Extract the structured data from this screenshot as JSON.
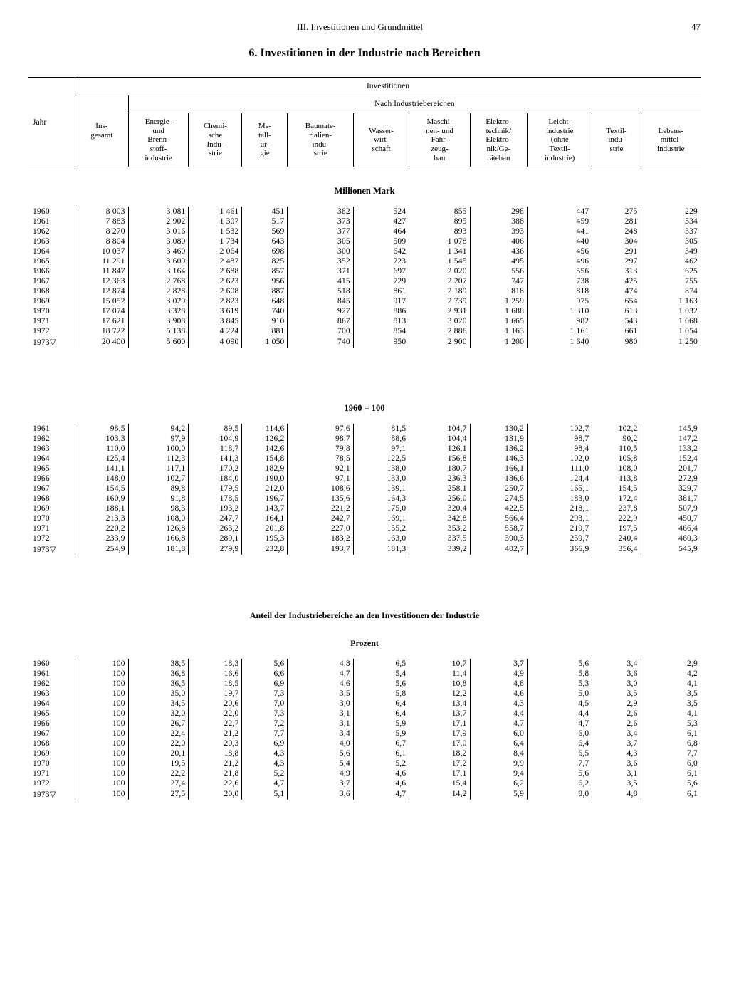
{
  "page": {
    "chapter": "III. Investitionen und Grundmittel",
    "number": "47",
    "title": "6. Investitionen in der Industrie nach Bereichen"
  },
  "headers": {
    "jahr": "Jahr",
    "investitionen": "Investitionen",
    "nach_bereichen": "Nach Industriebereichen",
    "cols": [
      "Ins-\ngesamt",
      "Energie-\nund\nBrenn-\nstoff-\nindustrie",
      "Chemi-\nsche\nIndu-\nstrie",
      "Me-\ntall-\nur-\ngie",
      "Baumate-\nrialien-\nindu-\nstrie",
      "Wasser-\nwirt-\nschaft",
      "Maschi-\nnen- und\nFahr-\nzeug-\nbau",
      "Elektro-\ntechnik/\nElektro-\nnik/Ge-\nrätebau",
      "Leicht-\nindustrie\n(ohne\nTextil-\nindustrie)",
      "Textil-\nindu-\nstrie",
      "Lebens-\nmittel-\nindustrie"
    ]
  },
  "sections": {
    "s1": "Millionen Mark",
    "s2": "1960 = 100",
    "s3a": "Anteil der Industriebereiche an den Investitionen der Industrie",
    "s3b": "Prozent"
  },
  "t1_years": [
    "1960",
    "1961",
    "1962",
    "1963",
    "1964",
    "1965",
    "1966",
    "1967",
    "1968",
    "1969",
    "1970",
    "1971",
    "1972",
    "1973▽"
  ],
  "t1": [
    [
      "8 003",
      "3 081",
      "1 461",
      "451",
      "382",
      "524",
      "855",
      "298",
      "447",
      "275",
      "229"
    ],
    [
      "7 883",
      "2 902",
      "1 307",
      "517",
      "373",
      "427",
      "895",
      "388",
      "459",
      "281",
      "334"
    ],
    [
      "8 270",
      "3 016",
      "1 532",
      "569",
      "377",
      "464",
      "893",
      "393",
      "441",
      "248",
      "337"
    ],
    [
      "8 804",
      "3 080",
      "1 734",
      "643",
      "305",
      "509",
      "1 078",
      "406",
      "440",
      "304",
      "305"
    ],
    [
      "10 037",
      "3 460",
      "2 064",
      "698",
      "300",
      "642",
      "1 341",
      "436",
      "456",
      "291",
      "349"
    ],
    [
      "11 291",
      "3 609",
      "2 487",
      "825",
      "352",
      "723",
      "1 545",
      "495",
      "496",
      "297",
      "462"
    ],
    [
      "11 847",
      "3 164",
      "2 688",
      "857",
      "371",
      "697",
      "2 020",
      "556",
      "556",
      "313",
      "625"
    ],
    [
      "12 363",
      "2 768",
      "2 623",
      "956",
      "415",
      "729",
      "2 207",
      "747",
      "738",
      "425",
      "755"
    ],
    [
      "12 874",
      "2 828",
      "2 608",
      "887",
      "518",
      "861",
      "2 189",
      "818",
      "818",
      "474",
      "874"
    ],
    [
      "15 052",
      "3 029",
      "2 823",
      "648",
      "845",
      "917",
      "2 739",
      "1 259",
      "975",
      "654",
      "1 163"
    ],
    [
      "17 074",
      "3 328",
      "3 619",
      "740",
      "927",
      "886",
      "2 931",
      "1 688",
      "1 310",
      "613",
      "1 032"
    ],
    [
      "17 621",
      "3 908",
      "3 845",
      "910",
      "867",
      "813",
      "3 020",
      "1 665",
      "982",
      "543",
      "1 068"
    ],
    [
      "18 722",
      "5 138",
      "4 224",
      "881",
      "700",
      "854",
      "2 886",
      "1 163",
      "1 161",
      "661",
      "1 054"
    ],
    [
      "20 400",
      "5 600",
      "4 090",
      "1 050",
      "740",
      "950",
      "2 900",
      "1 200",
      "1 640",
      "980",
      "1 250"
    ]
  ],
  "t2_years": [
    "1961",
    "1962",
    "1963",
    "1964",
    "1965",
    "1966",
    "1967",
    "1968",
    "1969",
    "1970",
    "1971",
    "1972",
    "1973▽"
  ],
  "t2": [
    [
      "98,5",
      "94,2",
      "89,5",
      "114,6",
      "97,6",
      "81,5",
      "104,7",
      "130,2",
      "102,7",
      "102,2",
      "145,9"
    ],
    [
      "103,3",
      "97,9",
      "104,9",
      "126,2",
      "98,7",
      "88,6",
      "104,4",
      "131,9",
      "98,7",
      "90,2",
      "147,2"
    ],
    [
      "110,0",
      "100,0",
      "118,7",
      "142,6",
      "79,8",
      "97,1",
      "126,1",
      "136,2",
      "98,4",
      "110,5",
      "133,2"
    ],
    [
      "125,4",
      "112,3",
      "141,3",
      "154,8",
      "78,5",
      "122,5",
      "156,8",
      "146,3",
      "102,0",
      "105,8",
      "152,4"
    ],
    [
      "141,1",
      "117,1",
      "170,2",
      "182,9",
      "92,1",
      "138,0",
      "180,7",
      "166,1",
      "111,0",
      "108,0",
      "201,7"
    ],
    [
      "148,0",
      "102,7",
      "184,0",
      "190,0",
      "97,1",
      "133,0",
      "236,3",
      "186,6",
      "124,4",
      "113,8",
      "272,9"
    ],
    [
      "154,5",
      "89,8",
      "179,5",
      "212,0",
      "108,6",
      "139,1",
      "258,1",
      "250,7",
      "165,1",
      "154,5",
      "329,7"
    ],
    [
      "160,9",
      "91,8",
      "178,5",
      "196,7",
      "135,6",
      "164,3",
      "256,0",
      "274,5",
      "183,0",
      "172,4",
      "381,7"
    ],
    [
      "188,1",
      "98,3",
      "193,2",
      "143,7",
      "221,2",
      "175,0",
      "320,4",
      "422,5",
      "218,1",
      "237,8",
      "507,9"
    ],
    [
      "213,3",
      "108,0",
      "247,7",
      "164,1",
      "242,7",
      "169,1",
      "342,8",
      "566,4",
      "293,1",
      "222,9",
      "450,7"
    ],
    [
      "220,2",
      "126,8",
      "263,2",
      "201,8",
      "227,0",
      "155,2",
      "353,2",
      "558,7",
      "219,7",
      "197,5",
      "466,4"
    ],
    [
      "233,9",
      "166,8",
      "289,1",
      "195,3",
      "183,2",
      "163,0",
      "337,5",
      "390,3",
      "259,7",
      "240,4",
      "460,3"
    ],
    [
      "254,9",
      "181,8",
      "279,9",
      "232,8",
      "193,7",
      "181,3",
      "339,2",
      "402,7",
      "366,9",
      "356,4",
      "545,9"
    ]
  ],
  "t3_years": [
    "1960",
    "1961",
    "1962",
    "1963",
    "1964",
    "1965",
    "1966",
    "1967",
    "1968",
    "1969",
    "1970",
    "1971",
    "1972",
    "1973▽"
  ],
  "t3": [
    [
      "100",
      "38,5",
      "18,3",
      "5,6",
      "4,8",
      "6,5",
      "10,7",
      "3,7",
      "5,6",
      "3,4",
      "2,9"
    ],
    [
      "100",
      "36,8",
      "16,6",
      "6,6",
      "4,7",
      "5,4",
      "11,4",
      "4,9",
      "5,8",
      "3,6",
      "4,2"
    ],
    [
      "100",
      "36,5",
      "18,5",
      "6,9",
      "4,6",
      "5,6",
      "10,8",
      "4,8",
      "5,3",
      "3,0",
      "4,1"
    ],
    [
      "100",
      "35,0",
      "19,7",
      "7,3",
      "3,5",
      "5,8",
      "12,2",
      "4,6",
      "5,0",
      "3,5",
      "3,5"
    ],
    [
      "100",
      "34,5",
      "20,6",
      "7,0",
      "3,0",
      "6,4",
      "13,4",
      "4,3",
      "4,5",
      "2,9",
      "3,5"
    ],
    [
      "100",
      "32,0",
      "22,0",
      "7,3",
      "3,1",
      "6,4",
      "13,7",
      "4,4",
      "4,4",
      "2,6",
      "4,1"
    ],
    [
      "100",
      "26,7",
      "22,7",
      "7,2",
      "3,1",
      "5,9",
      "17,1",
      "4,7",
      "4,7",
      "2,6",
      "5,3"
    ],
    [
      "100",
      "22,4",
      "21,2",
      "7,7",
      "3,4",
      "5,9",
      "17,9",
      "6,0",
      "6,0",
      "3,4",
      "6,1"
    ],
    [
      "100",
      "22,0",
      "20,3",
      "6,9",
      "4,0",
      "6,7",
      "17,0",
      "6,4",
      "6,4",
      "3,7",
      "6,8"
    ],
    [
      "100",
      "20,1",
      "18,8",
      "4,3",
      "5,6",
      "6,1",
      "18,2",
      "8,4",
      "6,5",
      "4,3",
      "7,7"
    ],
    [
      "100",
      "19,5",
      "21,2",
      "4,3",
      "5,4",
      "5,2",
      "17,2",
      "9,9",
      "7,7",
      "3,6",
      "6,0"
    ],
    [
      "100",
      "22,2",
      "21,8",
      "5,2",
      "4,9",
      "4,6",
      "17,1",
      "9,4",
      "5,6",
      "3,1",
      "6,1"
    ],
    [
      "100",
      "27,4",
      "22,6",
      "4,7",
      "3,7",
      "4,6",
      "15,4",
      "6,2",
      "6,2",
      "3,5",
      "5,6"
    ],
    [
      "100",
      "27,5",
      "20,0",
      "5,1",
      "3,6",
      "4,7",
      "14,2",
      "5,9",
      "8,0",
      "4,8",
      "6,1"
    ]
  ]
}
